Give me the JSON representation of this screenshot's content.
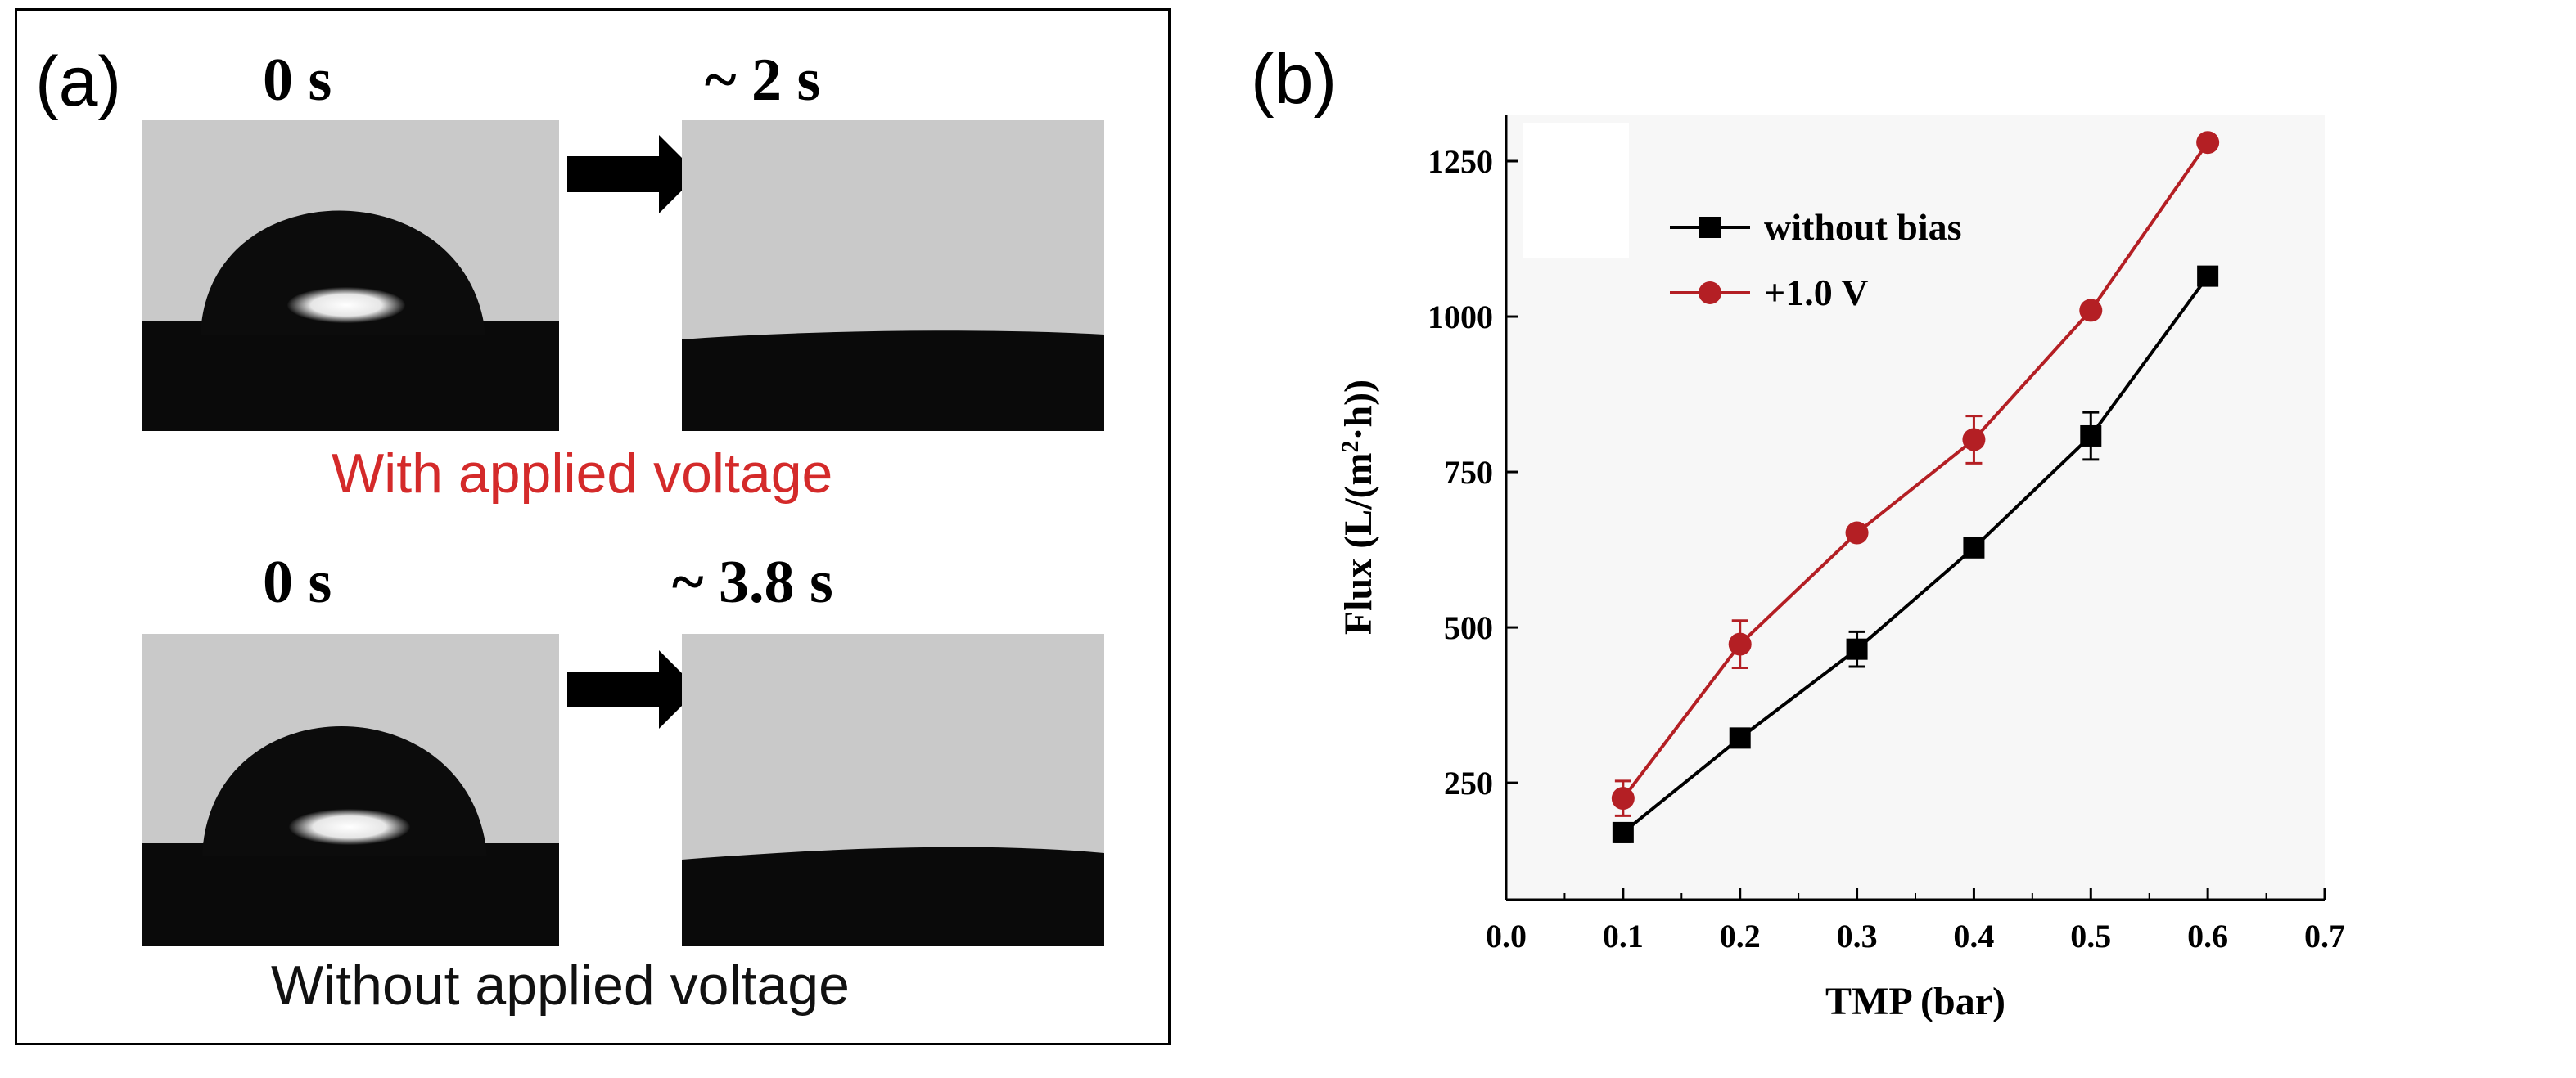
{
  "panel_a": {
    "label": "(a)",
    "top_row": {
      "time_start": "0 s",
      "time_end": "~ 2 s",
      "caption": "With applied voltage",
      "caption_color": "#d42a2a"
    },
    "bottom_row": {
      "time_start": "0 s",
      "time_end": "~ 3.8 s",
      "caption": "Without applied voltage",
      "caption_color": "#111111"
    }
  },
  "panel_b": {
    "label": "(b)"
  },
  "chart_data": {
    "type": "line",
    "xlabel": "TMP (bar)",
    "ylabel_main": "Flux (L/(m",
    "ylabel_sup": "2",
    "ylabel_tail": "·h))",
    "xlim": [
      0.0,
      0.7
    ],
    "ylim": [
      62,
      1325
    ],
    "xticks": [
      0.0,
      0.1,
      0.2,
      0.3,
      0.4,
      0.5,
      0.6,
      0.7
    ],
    "xtick_labels": [
      "0.0",
      "0.1",
      "0.2",
      "0.3",
      "0.4",
      "0.5",
      "0.6",
      "0.7"
    ],
    "yticks": [
      250,
      500,
      750,
      1000,
      1250
    ],
    "ytick_labels": [
      "250",
      "500",
      "750",
      "1000",
      "1250"
    ],
    "legend_position": "top-left",
    "series": [
      {
        "name": "without bias",
        "color": "#000000",
        "marker": "square",
        "x": [
          0.1,
          0.2,
          0.3,
          0.4,
          0.5,
          0.6
        ],
        "values": [
          170,
          322,
          465,
          628,
          808,
          1065
        ],
        "errors": [
          15,
          10,
          28,
          8,
          38,
          8
        ]
      },
      {
        "name": "+1.0 V",
        "color": "#b41f24",
        "marker": "circle",
        "x": [
          0.1,
          0.2,
          0.3,
          0.4,
          0.5,
          0.6
        ],
        "values": [
          225,
          473,
          652,
          802,
          1010,
          1280
        ],
        "errors": [
          28,
          38,
          8,
          38,
          8,
          8
        ]
      }
    ]
  }
}
